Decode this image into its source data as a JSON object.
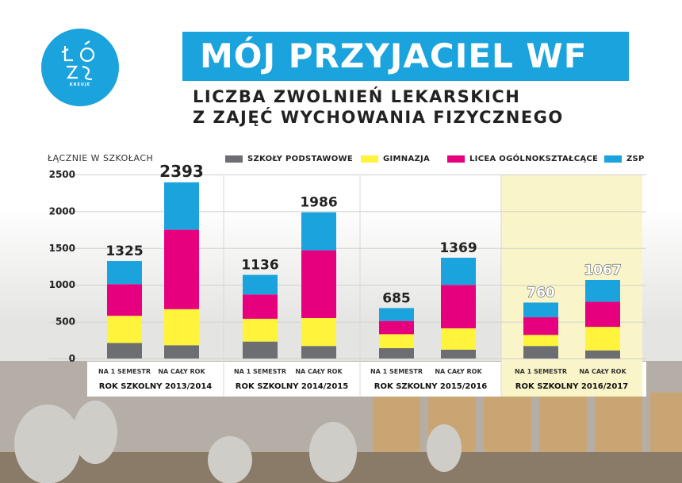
{
  "header": {
    "title": "MÓJ PRZYJACIEL WF",
    "subtitle_line1": "LICZBA ZWOLNIEŃ LEKARSKICH",
    "subtitle_line2": "Z ZAJĘĆ WYCHOWANIA FIZYCZNEGO",
    "logo_caption": "KREUJE"
  },
  "colors": {
    "accent": "#1aa3dd",
    "szkoly_podstawowe": "#6d6e71",
    "gimnazja": "#fff33b",
    "licea": "#e6007e",
    "zsp": "#1aa3dd",
    "highlight": "#faf5c8"
  },
  "chart_data": {
    "type": "bar",
    "stacked": true,
    "ylabel": "ŁĄCZNIE W SZKOŁACH",
    "ylim": [
      0,
      2500
    ],
    "yticks": [
      0,
      500,
      1000,
      1500,
      2000,
      2500
    ],
    "legend_position": "top",
    "groups": [
      {
        "label": "ROK SZKOLNY 2013/2014",
        "highlight": false
      },
      {
        "label": "ROK SZKOLNY 2014/2015",
        "highlight": false
      },
      {
        "label": "ROK SZKOLNY 2015/2016",
        "highlight": false
      },
      {
        "label": "ROK SZKOLNY 2016/2017",
        "highlight": true
      }
    ],
    "categories": [
      "NA 1 SEMESTR",
      "NA CAŁY ROK",
      "NA 1 SEMESTR",
      "NA CAŁY ROK",
      "NA 1 SEMESTR",
      "NA CAŁY ROK",
      "NA 1 SEMESTR",
      "NA CAŁY ROK"
    ],
    "totals": [
      1325,
      2393,
      1136,
      1986,
      685,
      1369,
      760,
      1067
    ],
    "series": [
      {
        "name": "SZKOŁY PODSTAWOWE",
        "color_key": "szkoly_podstawowe",
        "values": [
          210,
          180,
          230,
          170,
          140,
          120,
          170,
          110
        ]
      },
      {
        "name": "GIMNAZJA",
        "color_key": "gimnazja",
        "values": [
          370,
          490,
          310,
          380,
          190,
          290,
          150,
          320
        ]
      },
      {
        "name": "LICEA OGÓLNOKSZTAŁCĄCE",
        "color_key": "licea",
        "values": [
          430,
          1080,
          330,
          920,
          180,
          590,
          240,
          340
        ]
      },
      {
        "name": "ZSP",
        "color_key": "zsp",
        "values": [
          315,
          643,
          266,
          516,
          175,
          369,
          200,
          297
        ]
      }
    ]
  }
}
